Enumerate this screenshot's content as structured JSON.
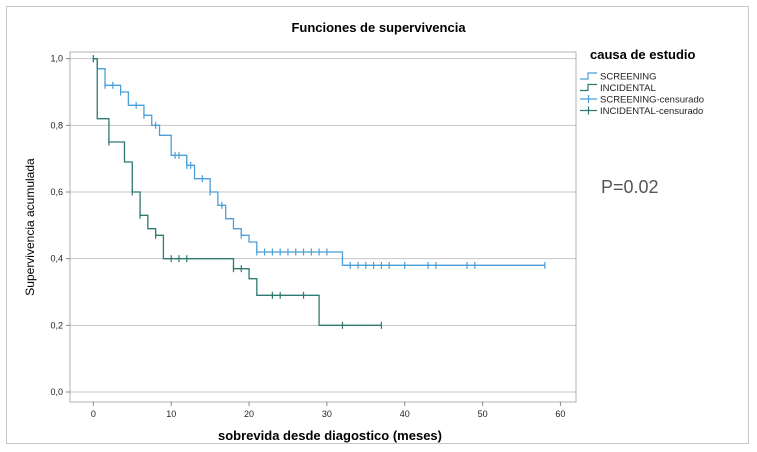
{
  "chart_data": {
    "type": "line",
    "title": "Funciones de supervivencia",
    "xlabel": "sobrevida desde diagostico (meses)",
    "ylabel": "Supervivencia acumulada",
    "xlim": [
      -3,
      62
    ],
    "ylim": [
      -0.03,
      1.02
    ],
    "x_ticks": [
      0,
      10,
      20,
      30,
      40,
      50,
      60
    ],
    "y_ticks": [
      0.0,
      0.2,
      0.4,
      0.6,
      0.8,
      1.0
    ],
    "y_tick_labels": [
      "0,0",
      "0,2",
      "0,4",
      "0,6",
      "0,8",
      "1,0"
    ],
    "grid": "horizontal",
    "legend_title": "causa de estudio",
    "legend_placement": "top-right",
    "annotation": "P=0.02",
    "series": [
      {
        "name": "SCREENING",
        "color": "#4a9fd8",
        "censor_label": "SCREENING-censurado",
        "x": [
          0,
          0.5,
          1.5,
          3.5,
          4.5,
          6.5,
          7.5,
          8.5,
          10,
          12,
          13,
          15,
          16,
          17,
          18,
          19,
          20,
          21,
          32,
          58
        ],
        "y": [
          1.0,
          0.97,
          0.92,
          0.9,
          0.86,
          0.83,
          0.8,
          0.77,
          0.71,
          0.68,
          0.64,
          0.6,
          0.56,
          0.52,
          0.49,
          0.47,
          0.45,
          0.42,
          0.38,
          0.38
        ],
        "censored_x": [
          0,
          1.5,
          2.5,
          3.5,
          5.5,
          6.5,
          8,
          10.5,
          11,
          12,
          12.5,
          14,
          15,
          16.5,
          19,
          21,
          22,
          23,
          24,
          25,
          26,
          27,
          28,
          29,
          30,
          33,
          34,
          35,
          36,
          37,
          38,
          40,
          43,
          44,
          48,
          49,
          58
        ]
      },
      {
        "name": "INCIDENTAL",
        "color": "#2e7a72",
        "censor_label": "INCIDENTAL-censurado",
        "x": [
          0,
          0.5,
          2,
          4,
          5,
          6,
          7,
          8,
          9,
          18,
          20,
          21,
          25,
          29,
          37
        ],
        "y": [
          1.0,
          0.82,
          0.75,
          0.69,
          0.6,
          0.53,
          0.49,
          0.47,
          0.4,
          0.37,
          0.34,
          0.29,
          0.29,
          0.2,
          0.2
        ],
        "censored_x": [
          0,
          2,
          5,
          6,
          8,
          10,
          11,
          12,
          18,
          19,
          23,
          24,
          27,
          32,
          37
        ]
      }
    ]
  }
}
